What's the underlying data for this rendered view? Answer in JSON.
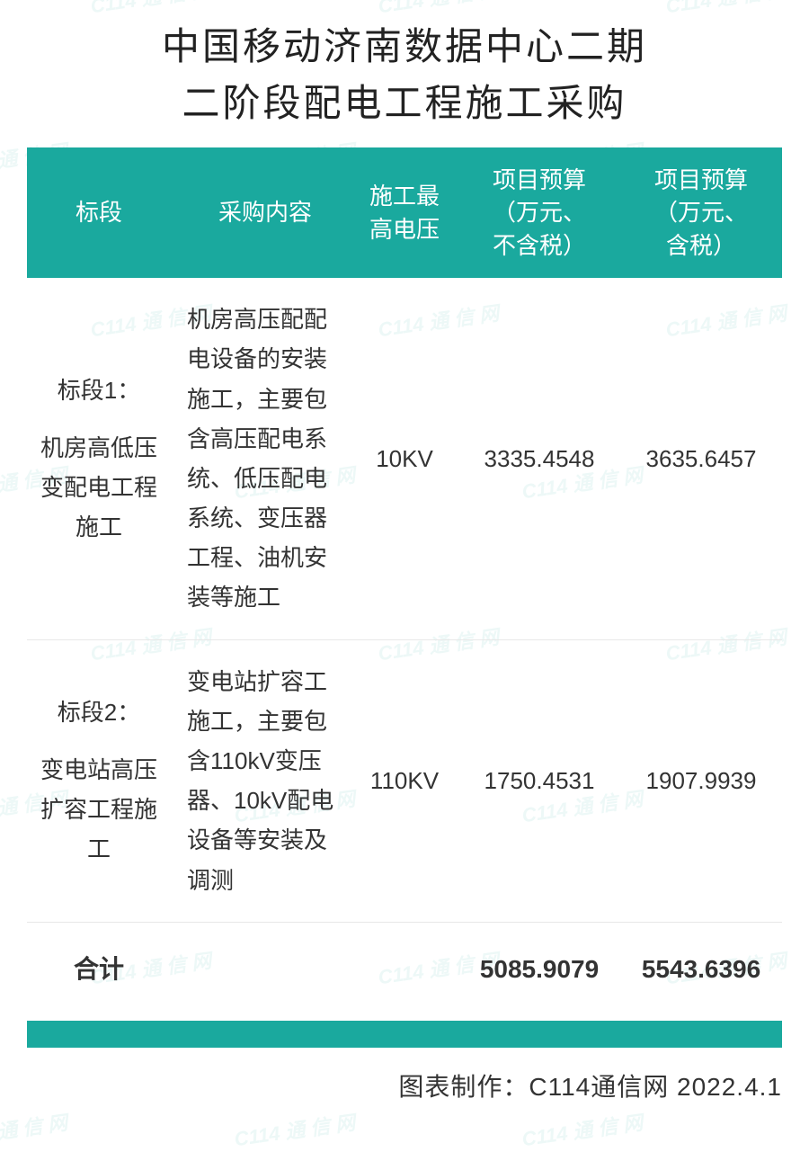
{
  "title_line1": "中国移动济南数据中心二期",
  "title_line2": "二阶段配电工程施工采购",
  "columns": {
    "section": "标段",
    "content": "采购内容",
    "voltage": "施工最高电压",
    "budget_notax": "项目预算（万元、不含税）",
    "budget_tax": "项目预算（万元、含税）"
  },
  "rows": [
    {
      "section_label": "标段1：",
      "section_desc": "机房高低压变配电工程施工",
      "content": "机房高压配配电设备的安装施工，主要包含高压配电系统、低压配电系统、变压器工程、油机安装等施工",
      "voltage": "10KV",
      "budget_notax": "3335.4548",
      "budget_tax": "3635.6457"
    },
    {
      "section_label": "标段2：",
      "section_desc": "变电站高压扩容工程施工",
      "content": "变电站扩容工施工，主要包含110kV变压器、10kV配电设备等安装及调测",
      "voltage": "110KV",
      "budget_notax": "1750.4531",
      "budget_tax": "1907.9939"
    }
  ],
  "total": {
    "label": "合计",
    "budget_notax": "5085.9079",
    "budget_tax": "5543.6396"
  },
  "attribution": "图表制作：C114通信网  2022.4.1",
  "watermark_text": "C114 通 信 网",
  "style": {
    "header_bg": "#1aa99e",
    "header_fg": "#ffffff",
    "text_color": "#333333",
    "title_fontsize": 42,
    "body_fontsize": 26,
    "total_fontsize": 28,
    "attribution_fontsize": 28,
    "watermark_color": "#1aa99e",
    "watermark_opacity": 0.08
  }
}
